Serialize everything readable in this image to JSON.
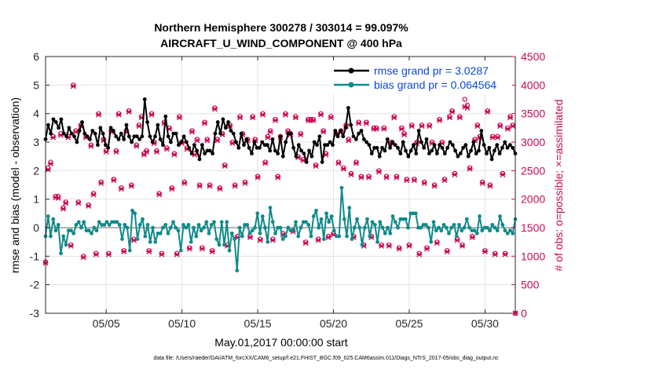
{
  "chart_data": {
    "type": "line",
    "title_line1": "Northern Hemisphere 300278 / 303014 = 99.097%",
    "title_line2": "AIRCRAFT_U_WIND_COMPONENT @ 400 hPa",
    "xlabel": "May.01,2017 00:00:00 start",
    "ylabel_left": "rmse and bias (model - observation)",
    "ylabel_right": "# of obs: o=possible; ×=assimilated",
    "footnote": "data file: /Users/raeder/DAI/ATM_forcXX/CAM6_setup/f.e21.FHIST_BGC.f09_025.CAM6assim.011/Diags_NTrS_2017-05/obs_diag_output.nc",
    "xlim": [
      1,
      32
    ],
    "ylim_left": [
      -3,
      6
    ],
    "ylim_right": [
      0,
      4500
    ],
    "yticks_left": [
      "-3",
      "-2",
      "-1",
      "0",
      "1",
      "2",
      "3",
      "4",
      "5",
      "6"
    ],
    "yticks_right": [
      "0",
      "500",
      "1000",
      "1500",
      "2000",
      "2500",
      "3000",
      "3500",
      "4000",
      "4500"
    ],
    "xticks": [
      {
        "x": 5,
        "label": "05/05"
      },
      {
        "x": 10,
        "label": "05/10"
      },
      {
        "x": 15,
        "label": "05/15"
      },
      {
        "x": 20,
        "label": "05/20"
      },
      {
        "x": 25,
        "label": "05/25"
      },
      {
        "x": 30,
        "label": "05/30"
      }
    ],
    "grid": true,
    "legend_position": "top-right",
    "colors": {
      "rmse": "#000000",
      "bias": "#0f8a8a",
      "obs": "#cc0a55",
      "zero_line": "#b3b3b3",
      "legend_text": "#0b49d6"
    },
    "series": [
      {
        "name": "rmse grand pr = 3.0287",
        "values": [
          3.1,
          3.6,
          3.3,
          3.8,
          3.7,
          3.5,
          3.8,
          3.3,
          3.2,
          3.5,
          3.3,
          3.2,
          3.0,
          3.4,
          3.7,
          3.3,
          3.2,
          3.1,
          3.4,
          3.3,
          2.9,
          3.5,
          3.3,
          2.9,
          2.8,
          3.5,
          3.4,
          3.2,
          3.1,
          3.3,
          3.1,
          3.6,
          3.2,
          3.0,
          3.2,
          3.2,
          3.1,
          3.2,
          4.5,
          3.7,
          3.2,
          3.0,
          3.2,
          3.6,
          3.1,
          2.9,
          3.9,
          3.2,
          3.0,
          3.3,
          3.3,
          2.9,
          3.0,
          3.2,
          3.0,
          2.8,
          2.6,
          2.9,
          2.7,
          2.4,
          2.9,
          2.6,
          2.7,
          2.7,
          2.6,
          3.3,
          3.7,
          3.3,
          3.8,
          3.5,
          3.7,
          3.4,
          3.3,
          3.0,
          2.8,
          3.3,
          2.9,
          3.1,
          2.8,
          2.6,
          3.0,
          2.8,
          2.8,
          3.0,
          2.9,
          2.9,
          2.7,
          3.1,
          2.7,
          2.6,
          3.2,
          2.5,
          3.0,
          3.3,
          3.3,
          2.8,
          2.5,
          2.9,
          2.7,
          2.6,
          2.3,
          2.7,
          2.5,
          3.0,
          2.9,
          3.2,
          2.3,
          2.9,
          2.9,
          3.0,
          2.9,
          3.4,
          3.2,
          3.4,
          3.2,
          3.5,
          4.2,
          3.6,
          3.2,
          3.1,
          3.3,
          3.4,
          3.1,
          3.0,
          2.9,
          2.6,
          2.8,
          2.8,
          2.5,
          2.8,
          2.7,
          3.1,
          2.8,
          3.0,
          2.9,
          2.8,
          2.6,
          3.0,
          2.7,
          2.5,
          2.7,
          2.9,
          2.6,
          3.4,
          3.0,
          2.8,
          3.1,
          2.6,
          2.7,
          2.9,
          2.6,
          2.9,
          2.8,
          2.6,
          2.8,
          3.0,
          2.9,
          2.7,
          2.5,
          2.6,
          2.8,
          2.9,
          2.5,
          2.7,
          3.0,
          2.6,
          2.7,
          3.4,
          2.9,
          2.6,
          2.8,
          2.4,
          2.7,
          2.9,
          2.6,
          2.8,
          3.0,
          2.8,
          2.9,
          2.8,
          2.6
        ]
      },
      {
        "name": "bias grand pr = 0.064564",
        "values": [
          -0.3,
          0.4,
          -0.3,
          0.3,
          -0.1,
          0.1,
          -0.9,
          -0.3,
          -0.6,
          -0.1,
          -0.1,
          -0.2,
          0.1,
          0.2,
          0.0,
          0.2,
          -0.1,
          -0.1,
          -0.2,
          0.0,
          -0.1,
          0.2,
          0.1,
          0.1,
          0.2,
          0.1,
          0.2,
          0.2,
          0.2,
          0.1,
          -0.4,
          0.1,
          0.0,
          -0.8,
          0.6,
          0.5,
          -0.4,
          0.1,
          0.3,
          -0.3,
          0.1,
          -0.5,
          0.0,
          -0.5,
          -0.2,
          -0.2,
          0.0,
          0.1,
          -0.2,
          0.0,
          0.2,
          0.0,
          -0.1,
          -0.8,
          0.1,
          0.0,
          0.1,
          -0.5,
          0.0,
          -0.3,
          0.1,
          -0.1,
          0.0,
          0.2,
          -0.2,
          0.1,
          0.2,
          -0.4,
          -0.6,
          0.2,
          -0.6,
          0.2,
          -0.8,
          -0.2,
          -0.4,
          -1.5,
          0.0,
          -0.3,
          0.1,
          0.1,
          -0.2,
          -0.1,
          0.0,
          0.5,
          -0.2,
          0.4,
          0.0,
          -0.5,
          0.7,
          0.2,
          -0.2,
          0.0,
          0.0,
          -0.4,
          -0.3,
          0.0,
          -0.1,
          -0.1,
          0.2,
          -0.3,
          0.0,
          0.2,
          0.2,
          0.1,
          -0.3,
          0.4,
          0.6,
          0.0,
          0.3,
          -0.4,
          0.5,
          0.2,
          0.4,
          -0.1,
          -0.3,
          -0.3,
          1.4,
          0.3,
          -0.3,
          0.7,
          -0.4,
          0.0,
          0.3,
          0.0,
          -0.6,
          0.0,
          0.3,
          -0.3,
          0.2,
          0.1,
          -0.5,
          0.2,
          0.0,
          -0.2,
          0.0,
          -0.2,
          0.4,
          0.2,
          0.0,
          0.3,
          0.3,
          0.3,
          0.0,
          0.5,
          0.5,
          0.5,
          0.0,
          0.0,
          0.1,
          0.1,
          0.0,
          -0.5,
          0.2,
          -0.1,
          0.0,
          -0.1,
          0.1,
          0.0,
          -0.2,
          0.0,
          0.1,
          -0.3,
          0.1,
          -0.1,
          0.0,
          0.3,
          0.0,
          -0.1,
          -0.1,
          -0.2,
          0.4,
          -0.1,
          0.0,
          0.0,
          -0.1,
          0.1,
          0.0,
          -0.1,
          0.4,
          0.1,
          -0.1,
          -0.2,
          -0.1,
          -0.2,
          0.3
        ]
      },
      {
        "name": "obs possible",
        "values": [
          900,
          2550,
          2650,
          3100,
          2050,
          2050,
          3150,
          1850,
          1950,
          3100,
          1200,
          4000,
          3200,
          1950,
          3300,
          1000,
          3100,
          1900,
          2950,
          2100,
          1050,
          3500,
          2300,
          3050,
          2850,
          1050,
          3200,
          2350,
          2850,
          3500,
          2200,
          1100,
          3200,
          3550,
          2250,
          1300,
          2950,
          3300,
          3450,
          2800,
          2850,
          1100,
          3500,
          3000,
          2850,
          2100,
          1050,
          3350,
          2900,
          3250,
          2200,
          2800,
          1050,
          3450,
          3000,
          2300,
          2900,
          1150,
          3200,
          2800,
          3050,
          2250,
          1150,
          3350,
          3050,
          2250,
          1100,
          3600,
          3050,
          2200,
          3150,
          2600,
          1200,
          3300,
          3000,
          2250,
          1350,
          3450,
          3150,
          2300,
          3050,
          1350,
          3450,
          3050,
          2400,
          1300,
          3500,
          2650,
          3100,
          3200,
          1300,
          3400,
          2400,
          3100,
          1400,
          3500,
          3200,
          3150,
          1450,
          3450,
          2750,
          3150,
          2700,
          1250,
          3400,
          3400,
          3400,
          2600,
          1300,
          3500,
          3200,
          2800,
          1350,
          3450,
          1400,
          3150,
          2650,
          3200,
          2550,
          3300,
          3050,
          2450,
          1350,
          2650,
          3350,
          2400,
          1200,
          3350,
          2400,
          1350,
          3250,
          3250,
          2500,
          1200,
          3250,
          2400,
          1200,
          3000,
          3450,
          2400,
          1150,
          3250,
          3150,
          2350,
          1200,
          3300,
          2350,
          3000,
          1050,
          3300,
          2300,
          1150,
          3300,
          3000,
          2250,
          1250,
          3400,
          3000,
          2350,
          1100,
          3450,
          3550,
          2450,
          1300,
          3450,
          1200,
          3750,
          3650,
          2550,
          1350,
          3050,
          3300,
          3100,
          2300,
          1100,
          3550,
          2250,
          3100,
          1050,
          3100,
          3300,
          2450,
          1050,
          3250,
          3450,
          3300,
          0
        ]
      },
      {
        "name": "obs assimilated",
        "values": [
          880,
          2520,
          2620,
          3080,
          2030,
          2020,
          3120,
          1830,
          1930,
          3080,
          1180,
          3980,
          3180,
          1930,
          3280,
          980,
          3080,
          1880,
          2930,
          2080,
          1030,
          3480,
          2280,
          3030,
          2830,
          1030,
          3180,
          2330,
          2830,
          3480,
          2180,
          1080,
          3180,
          3530,
          2230,
          1280,
          2930,
          3280,
          3430,
          2780,
          2830,
          1080,
          3480,
          2980,
          2830,
          2080,
          1030,
          3330,
          2880,
          3230,
          2180,
          2780,
          1030,
          3430,
          2980,
          2280,
          2880,
          1130,
          3180,
          2780,
          3030,
          2230,
          1130,
          3330,
          3030,
          2230,
          1080,
          3580,
          3030,
          2180,
          3130,
          2580,
          1180,
          3280,
          2980,
          2230,
          1330,
          3430,
          3130,
          2280,
          3030,
          1330,
          3430,
          3030,
          2380,
          1280,
          3480,
          2630,
          3080,
          3180,
          1280,
          3380,
          2380,
          3080,
          1380,
          3480,
          3180,
          3130,
          1430,
          3430,
          2730,
          3130,
          2680,
          1230,
          3380,
          3380,
          3380,
          2580,
          1280,
          3480,
          3180,
          2780,
          1330,
          3430,
          1380,
          3130,
          2630,
          3180,
          2530,
          3280,
          3030,
          2430,
          1330,
          2630,
          3330,
          2380,
          1180,
          3330,
          2380,
          1330,
          3230,
          3230,
          2480,
          1180,
          3230,
          2380,
          1180,
          2980,
          3430,
          2380,
          1130,
          3230,
          3130,
          2330,
          1180,
          3280,
          2330,
          2980,
          1030,
          3280,
          2280,
          1130,
          3280,
          2980,
          2230,
          1230,
          3380,
          2980,
          2330,
          1080,
          3430,
          3530,
          2430,
          1280,
          3430,
          1180,
          3620,
          3600,
          2530,
          1330,
          3030,
          3280,
          3080,
          2280,
          1080,
          3530,
          2230,
          3080,
          1030,
          3080,
          3280,
          2430,
          1030,
          3230,
          3430,
          3280,
          0
        ]
      }
    ]
  }
}
